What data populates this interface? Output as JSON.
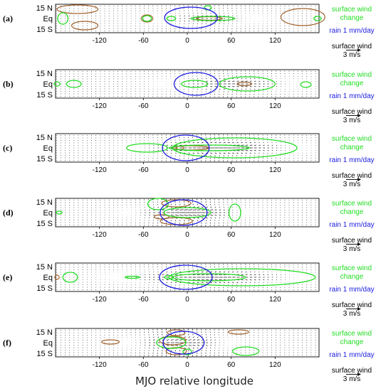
{
  "colors": {
    "wind_change": "#22dd22",
    "rain": "#1a1adf",
    "brown_contour": "#a0622d",
    "vectors": "#111111",
    "frame": "#000000"
  },
  "chart_data": {
    "type": "vector-field-with-contours",
    "xlabel": "MJO relative longitude",
    "x_range": [
      -180,
      180
    ],
    "y_range": [
      -20,
      20
    ],
    "x_ticks": [
      -120,
      -60,
      0,
      60,
      120
    ],
    "y_ticks": [
      {
        "value": 15,
        "label": "15 N"
      },
      {
        "value": 0,
        "label": "Eq"
      },
      {
        "value": -15,
        "label": "15 S"
      }
    ],
    "legend": {
      "wind_change_line1": "surface wind",
      "wind_change_line2": "change",
      "rain": "rain 1 mm/day",
      "wind_ref_line1": "surface wind",
      "wind_ref_line2": "3 m/s",
      "wind_ref_ms": 3
    },
    "panels": [
      {
        "label": "(a)",
        "rain": [
          {
            "lon": 5,
            "lat": 1,
            "hw": 36,
            "hh": 15
          }
        ],
        "green": [
          {
            "lon": 35,
            "lat": 0,
            "hw": 30,
            "hh": 3
          },
          {
            "lon": 28,
            "lat": 15,
            "hw": 5,
            "hh": 3
          },
          {
            "lon": -22,
            "lat": 0,
            "hw": 6,
            "hh": 3
          },
          {
            "lon": -55,
            "lat": 0,
            "hw": 6,
            "hh": 4
          },
          {
            "lon": -170,
            "lat": 0,
            "hw": 7,
            "hh": 8
          },
          {
            "lon": 178,
            "lat": 0,
            "hw": 5,
            "hh": 3
          }
        ],
        "brown": [
          {
            "lon": 30,
            "lat": 0,
            "hw": 18,
            "hh": 2.5
          },
          {
            "lon": -55,
            "lat": 0,
            "hw": 8,
            "hh": 5
          },
          {
            "lon": -150,
            "lat": 13,
            "hw": 28,
            "hh": 6
          },
          {
            "lon": -140,
            "lat": -10,
            "hw": 18,
            "hh": 6
          },
          {
            "lon": 158,
            "lat": 2,
            "hw": 30,
            "hh": 12
          }
        ],
        "wind": {
          "peak_u": 0.5,
          "center": 25,
          "width": 60,
          "conv": 0.25
        }
      },
      {
        "label": "(b)",
        "rain": [
          {
            "lon": 12,
            "lat": 0,
            "hw": 30,
            "hh": 16
          }
        ],
        "green": [
          {
            "lon": 10,
            "lat": 0,
            "hw": 18,
            "hh": 5
          },
          {
            "lon": 82,
            "lat": 0,
            "hw": 38,
            "hh": 10
          },
          {
            "lon": -155,
            "lat": 0,
            "hw": 10,
            "hh": 5
          },
          {
            "lon": -178,
            "lat": 0,
            "hw": 4,
            "hh": 3
          },
          {
            "lon": 162,
            "lat": -1,
            "hw": 7,
            "hh": 4
          }
        ],
        "brown": [
          {
            "lon": 78,
            "lat": 0,
            "hw": 10,
            "hh": 2.5
          }
        ],
        "wind": {
          "peak_u": 0.7,
          "center": 60,
          "width": 70,
          "conv": 0.3
        }
      },
      {
        "label": "(c)",
        "rain": [
          {
            "lon": -2,
            "lat": 0,
            "hw": 32,
            "hh": 18
          }
        ],
        "green": [
          {
            "lon": 65,
            "lat": 0,
            "hw": 85,
            "hh": 14
          },
          {
            "lon": 30,
            "lat": 0,
            "hw": 55,
            "hh": 4
          },
          {
            "lon": -55,
            "lat": 0,
            "hw": 28,
            "hh": 6
          }
        ],
        "brown": [
          {
            "lon": 5,
            "lat": 0,
            "hw": 25,
            "hh": 3
          },
          {
            "lon": -10,
            "lat": 0,
            "hw": 5,
            "hh": 2.5
          }
        ],
        "wind": {
          "peak_u": 1.0,
          "center": 40,
          "width": 80,
          "conv": 0.35
        }
      },
      {
        "label": "(d)",
        "rain": [
          {
            "lon": -5,
            "lat": 0,
            "hw": 32,
            "hh": 18
          }
        ],
        "green": [
          {
            "lon": 0,
            "lat": 0,
            "hw": 32,
            "hh": 7
          },
          {
            "lon": -40,
            "lat": 12,
            "hw": 14,
            "hh": 8
          },
          {
            "lon": 65,
            "lat": 0,
            "hw": 8,
            "hh": 12
          },
          {
            "lon": -175,
            "lat": 0,
            "hw": 4,
            "hh": 2
          }
        ],
        "brown": [
          {
            "lon": -15,
            "lat": 13,
            "hw": 20,
            "hh": 5
          },
          {
            "lon": -15,
            "lat": -12,
            "hw": 22,
            "hh": 5
          },
          {
            "lon": -35,
            "lat": -6,
            "hw": 10,
            "hh": 3
          }
        ],
        "wind": {
          "peak_u": 1.1,
          "center": 0,
          "width": 55,
          "conv": 0.45
        }
      },
      {
        "label": "(e)",
        "rain": [
          {
            "lon": -2,
            "lat": 0,
            "hw": 36,
            "hh": 17
          }
        ],
        "green": [
          {
            "lon": 75,
            "lat": 0,
            "hw": 100,
            "hh": 12
          },
          {
            "lon": 30,
            "lat": 0,
            "hw": 50,
            "hh": 5
          },
          {
            "lon": -160,
            "lat": 0,
            "hw": 10,
            "hh": 7
          },
          {
            "lon": -75,
            "lat": 0,
            "hw": 10,
            "hh": 1.5
          },
          {
            "lon": -25,
            "lat": 0,
            "hw": 6,
            "hh": 2.5
          }
        ],
        "brown": [
          {
            "lon": -178,
            "lat": 0,
            "hw": 3,
            "hh": 3
          }
        ],
        "wind": {
          "peak_u": 0.9,
          "center": 30,
          "width": 90,
          "conv": 0.3
        }
      },
      {
        "label": "(f)",
        "rain": [
          {
            "lon": -5,
            "lat": 0,
            "hw": 28,
            "hh": 16
          }
        ],
        "green": [
          {
            "lon": -22,
            "lat": 0,
            "hw": 20,
            "hh": 8
          },
          {
            "lon": 80,
            "lat": -12,
            "hw": 18,
            "hh": 6
          },
          {
            "lon": 0,
            "lat": -13,
            "hw": 6,
            "hh": 4
          }
        ],
        "brown": [
          {
            "lon": -20,
            "lat": 3,
            "hw": 18,
            "hh": 6
          },
          {
            "lon": -15,
            "lat": 14,
            "hw": 12,
            "hh": 4
          },
          {
            "lon": -15,
            "lat": -12,
            "hw": 14,
            "hh": 5
          },
          {
            "lon": -105,
            "lat": 1,
            "hw": 12,
            "hh": 3
          },
          {
            "lon": 70,
            "lat": 15,
            "hw": 14,
            "hh": 3
          }
        ],
        "wind": {
          "peak_u": 0.9,
          "center": -10,
          "width": 50,
          "conv": 0.5
        }
      }
    ]
  }
}
